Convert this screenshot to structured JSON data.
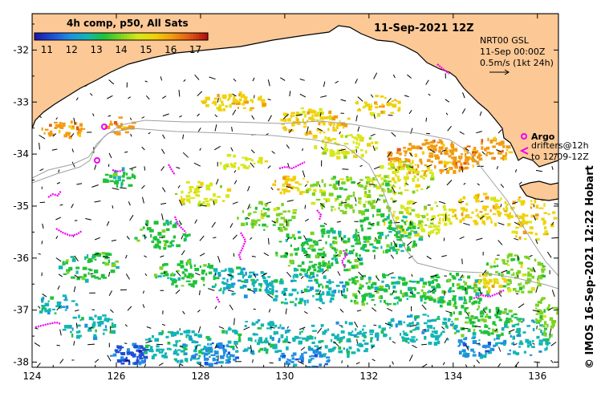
{
  "map": {
    "date_label": "11-Sep-2021 12Z",
    "colorbar": {
      "title": "4h comp, p50, All Sats",
      "ticks": [
        "11",
        "12",
        "13",
        "14",
        "15",
        "16",
        "17"
      ],
      "min": 10.5,
      "max": 17.5,
      "colors": [
        "#1a1aa8",
        "#1f4fd8",
        "#1f8fe0",
        "#12b5b5",
        "#1fc23a",
        "#7ed321",
        "#d7e81a",
        "#f2d00a",
        "#f39a10",
        "#e25a14",
        "#b3120f"
      ]
    },
    "current_info": {
      "line1": "NRT00 GSL",
      "line2": "11-Sep 00:00Z",
      "line3": "0.5m/s (1kt 24h)"
    },
    "argo_legend": {
      "argo_label": "Argo",
      "drifters_line1": "drifters@12h",
      "drifters_line2": "to 12/09-12Z"
    },
    "credit": "© IMOS 16-Sep-2021 12:22 Hobart",
    "x_ticks": [
      "124",
      "126",
      "128",
      "130",
      "132",
      "134",
      "136"
    ],
    "y_ticks": [
      "-32",
      "-33",
      "-34",
      "-35",
      "-36",
      "-37",
      "-38"
    ],
    "extent": {
      "lon_min": 124,
      "lon_max": 136.5,
      "lat_min": -38.1,
      "lat_max": -31.3
    },
    "colors": {
      "land": "#fbc896",
      "coastline": "#000000",
      "drifter": "#ee00ee",
      "bathymetry": "#a0a0a0"
    }
  }
}
